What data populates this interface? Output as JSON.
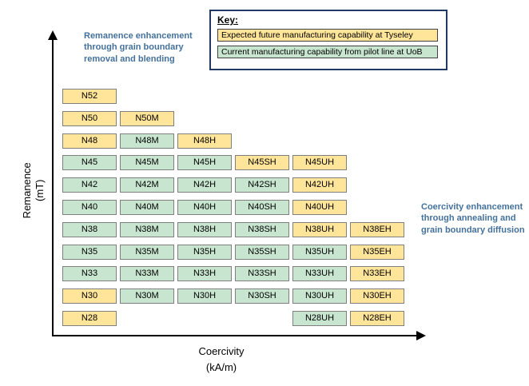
{
  "key": {
    "title": "Key:",
    "items": [
      {
        "label": "Expected future manufacturing capability at Tyseley",
        "status": "future",
        "color": "#ffe599"
      },
      {
        "label": "Current manufacturing capability from pilot line at UoB",
        "status": "current",
        "color": "#c8e6cf"
      }
    ]
  },
  "annotations": {
    "remanence": "Remanence enhancement through grain boundary removal and blending",
    "coercivity": "Coercivity enhancement through annealing and grain boundary diffusion"
  },
  "axes": {
    "y_line1": "Remanence",
    "y_line2": "(mT)",
    "x_line1": "Coercivity",
    "x_line2": "(kA/m)"
  },
  "chart_data": {
    "type": "heatmap",
    "title": "",
    "xlabel": "Coercivity (kA/m)",
    "ylabel": "Remanence (mT)",
    "legend": {
      "future": "Expected future manufacturing capability at Tyseley",
      "current": "Current manufacturing capability from pilot line at UoB"
    },
    "status_colors": {
      "future": "#ffe599",
      "current": "#c8e6cf"
    },
    "columns": [
      "base",
      "M",
      "H",
      "SH",
      "UH",
      "EH"
    ],
    "rows": [
      {
        "grade": "N52",
        "cells": [
          {
            "label": "N52",
            "col": 0,
            "status": "future"
          }
        ]
      },
      {
        "grade": "N50",
        "cells": [
          {
            "label": "N50",
            "col": 0,
            "status": "future"
          },
          {
            "label": "N50M",
            "col": 1,
            "status": "future"
          }
        ]
      },
      {
        "grade": "N48",
        "cells": [
          {
            "label": "N48",
            "col": 0,
            "status": "future"
          },
          {
            "label": "N48M",
            "col": 1,
            "status": "current"
          },
          {
            "label": "N48H",
            "col": 2,
            "status": "future"
          }
        ]
      },
      {
        "grade": "N45",
        "cells": [
          {
            "label": "N45",
            "col": 0,
            "status": "current"
          },
          {
            "label": "N45M",
            "col": 1,
            "status": "current"
          },
          {
            "label": "N45H",
            "col": 2,
            "status": "current"
          },
          {
            "label": "N45SH",
            "col": 3,
            "status": "future"
          },
          {
            "label": "N45UH",
            "col": 4,
            "status": "future"
          }
        ]
      },
      {
        "grade": "N42",
        "cells": [
          {
            "label": "N42",
            "col": 0,
            "status": "current"
          },
          {
            "label": "N42M",
            "col": 1,
            "status": "current"
          },
          {
            "label": "N42H",
            "col": 2,
            "status": "current"
          },
          {
            "label": "N42SH",
            "col": 3,
            "status": "current"
          },
          {
            "label": "N42UH",
            "col": 4,
            "status": "future"
          }
        ]
      },
      {
        "grade": "N40",
        "cells": [
          {
            "label": "N40",
            "col": 0,
            "status": "current"
          },
          {
            "label": "N40M",
            "col": 1,
            "status": "current"
          },
          {
            "label": "N40H",
            "col": 2,
            "status": "current"
          },
          {
            "label": "N40SH",
            "col": 3,
            "status": "current"
          },
          {
            "label": "N40UH",
            "col": 4,
            "status": "future"
          }
        ]
      },
      {
        "grade": "N38",
        "cells": [
          {
            "label": "N38",
            "col": 0,
            "status": "current"
          },
          {
            "label": "N38M",
            "col": 1,
            "status": "current"
          },
          {
            "label": "N38H",
            "col": 2,
            "status": "current"
          },
          {
            "label": "N38SH",
            "col": 3,
            "status": "current"
          },
          {
            "label": "N38UH",
            "col": 4,
            "status": "future"
          },
          {
            "label": "N38EH",
            "col": 5,
            "status": "future"
          }
        ]
      },
      {
        "grade": "N35",
        "cells": [
          {
            "label": "N35",
            "col": 0,
            "status": "current"
          },
          {
            "label": "N35M",
            "col": 1,
            "status": "current"
          },
          {
            "label": "N35H",
            "col": 2,
            "status": "current"
          },
          {
            "label": "N35SH",
            "col": 3,
            "status": "current"
          },
          {
            "label": "N35UH",
            "col": 4,
            "status": "current"
          },
          {
            "label": "N35EH",
            "col": 5,
            "status": "future"
          }
        ]
      },
      {
        "grade": "N33",
        "cells": [
          {
            "label": "N33",
            "col": 0,
            "status": "current"
          },
          {
            "label": "N33M",
            "col": 1,
            "status": "current"
          },
          {
            "label": "N33H",
            "col": 2,
            "status": "current"
          },
          {
            "label": "N33SH",
            "col": 3,
            "status": "current"
          },
          {
            "label": "N33UH",
            "col": 4,
            "status": "current"
          },
          {
            "label": "N33EH",
            "col": 5,
            "status": "future"
          }
        ]
      },
      {
        "grade": "N30",
        "cells": [
          {
            "label": "N30",
            "col": 0,
            "status": "future"
          },
          {
            "label": "N30M",
            "col": 1,
            "status": "current"
          },
          {
            "label": "N30H",
            "col": 2,
            "status": "current"
          },
          {
            "label": "N30SH",
            "col": 3,
            "status": "current"
          },
          {
            "label": "N30UH",
            "col": 4,
            "status": "current"
          },
          {
            "label": "N30EH",
            "col": 5,
            "status": "future"
          }
        ]
      },
      {
        "grade": "N28",
        "cells": [
          {
            "label": "N28",
            "col": 0,
            "status": "future"
          },
          {
            "label": "N28UH",
            "col": 4,
            "status": "current"
          },
          {
            "label": "N28EH",
            "col": 5,
            "status": "future"
          }
        ]
      }
    ]
  }
}
